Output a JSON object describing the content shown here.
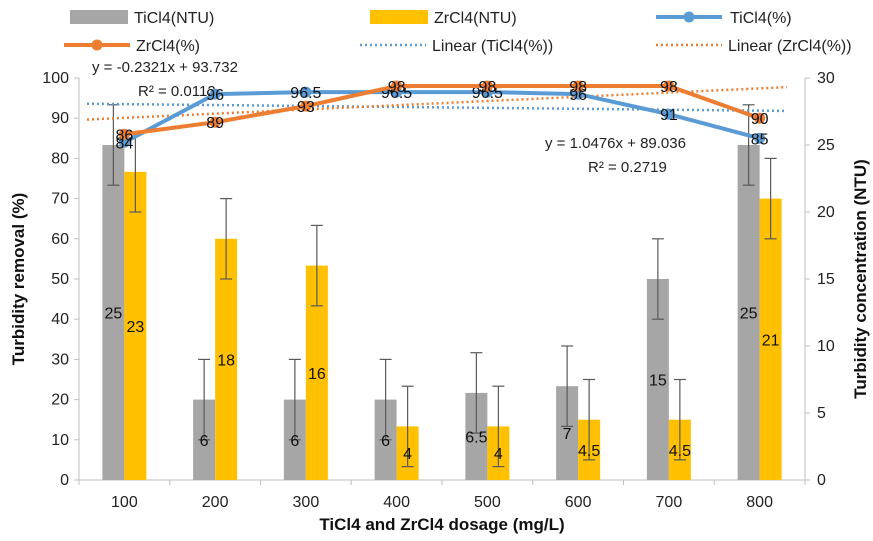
{
  "chart_data": {
    "type": "bar",
    "categories": [
      "100",
      "200",
      "300",
      "400",
      "500",
      "600",
      "700",
      "800"
    ],
    "xlabel": "TiCl4 and ZrCl4 dosage (mg/L)",
    "ylabel": "Turbidity removal (%)",
    "y2label": "Turbidity concentration (NTU)",
    "ylim": [
      0,
      100
    ],
    "y2lim": [
      0,
      30
    ],
    "yticks": [
      "0",
      "10",
      "20",
      "30",
      "40",
      "50",
      "60",
      "70",
      "80",
      "90",
      "100"
    ],
    "y2ticks": [
      "0",
      "5",
      "10",
      "15",
      "20",
      "25",
      "30"
    ],
    "grid": false,
    "legend_position": "top",
    "bar_series": [
      {
        "name": "TiCl4(NTU)",
        "color": "#a6a6a6",
        "values": [
          25,
          6,
          6,
          6,
          6.5,
          7,
          15,
          25
        ],
        "labels": [
          "25",
          "6",
          "6",
          "6",
          "6.5",
          "7",
          "15",
          "25"
        ],
        "err": [
          3,
          3,
          3,
          3,
          3,
          3,
          3,
          3
        ]
      },
      {
        "name": "ZrCl4(NTU)",
        "color": "#ffc000",
        "values": [
          23,
          18,
          16,
          4,
          4,
          4.5,
          4.5,
          21
        ],
        "labels": [
          "23",
          "18",
          "16",
          "4",
          "4",
          "4.5",
          "4.5",
          "21"
        ],
        "err": [
          3,
          3,
          3,
          3,
          3,
          3,
          3,
          3
        ]
      }
    ],
    "line_series": [
      {
        "name": "TiCl4(%)",
        "color": "#5b9bd5",
        "values": [
          84,
          96,
          96.5,
          96.5,
          96.5,
          96,
          91,
          85
        ],
        "labels": [
          "84",
          "96",
          "96.5",
          "96.5",
          "96.5",
          "96",
          "91",
          "85"
        ]
      },
      {
        "name": "ZrCl4(%)",
        "color": "#ed7d31",
        "values": [
          86,
          89,
          93,
          98,
          98,
          98,
          98,
          90
        ],
        "labels": [
          "86",
          "89",
          "93",
          "98",
          "98",
          "98",
          "98",
          "90"
        ]
      }
    ],
    "trendlines": [
      {
        "name": "Linear (TiCl4(%))",
        "color": "#5b9bd5",
        "slope": -0.2321,
        "intercept": 93.732,
        "equation": "y = -0.2321x + 93.732",
        "r2": "R² = 0.0112"
      },
      {
        "name": "Linear (ZrCl4(%))",
        "color": "#ed7d31",
        "slope": 1.0476,
        "intercept": 89.036,
        "equation": "y = 1.0476x + 89.036",
        "r2": "R² = 0.2719"
      }
    ]
  }
}
